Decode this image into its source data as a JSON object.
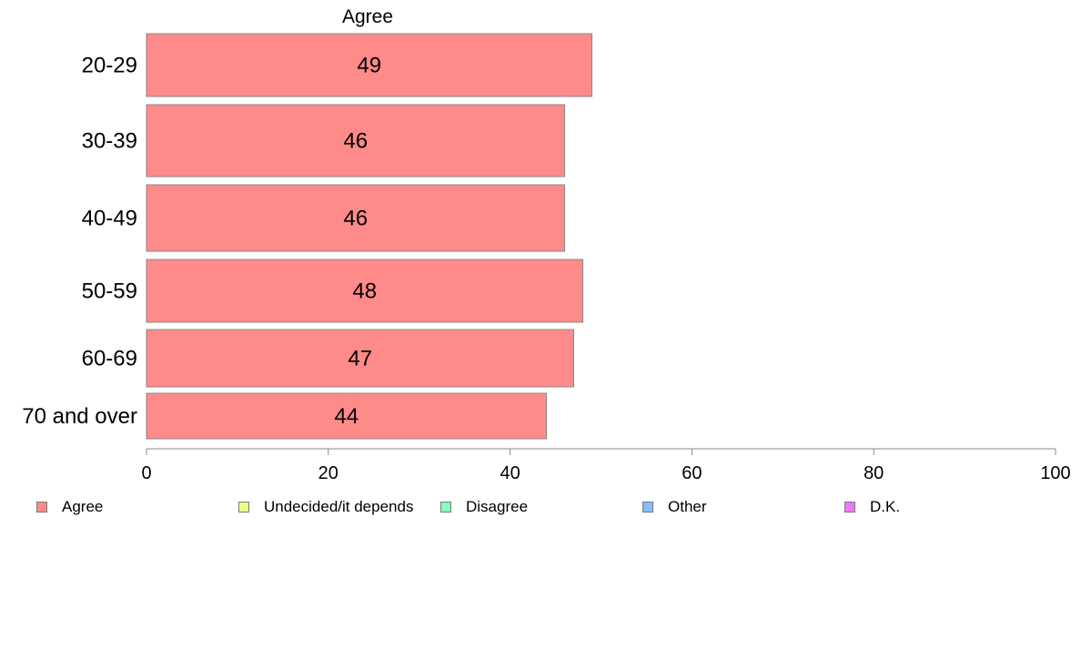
{
  "chart_data": {
    "type": "bar",
    "orientation": "horizontal",
    "title": "Agree",
    "categories": [
      "20-29",
      "30-39",
      "40-49",
      "50-59",
      "60-69",
      "70 and over"
    ],
    "series": [
      {
        "name": "Agree",
        "values": [
          49,
          46,
          46,
          48,
          47,
          44
        ]
      }
    ],
    "data_labels": [
      "49",
      "46",
      "46",
      "48",
      "47",
      "44"
    ],
    "xlim": [
      0,
      100
    ],
    "x_ticks": [
      0,
      20,
      40,
      60,
      80,
      100
    ],
    "grid": false,
    "legend_position": "bottom",
    "legend": [
      {
        "label": "Agree",
        "color": "#ff8a8a"
      },
      {
        "label": "Undecided/it depends",
        "color": "#eeff88"
      },
      {
        "label": "Disagree",
        "color": "#88ffbb"
      },
      {
        "label": "Other",
        "color": "#88bbff"
      },
      {
        "label": "D.K.",
        "color": "#ee77ff"
      }
    ],
    "bar_color": "#ff8a8a"
  }
}
